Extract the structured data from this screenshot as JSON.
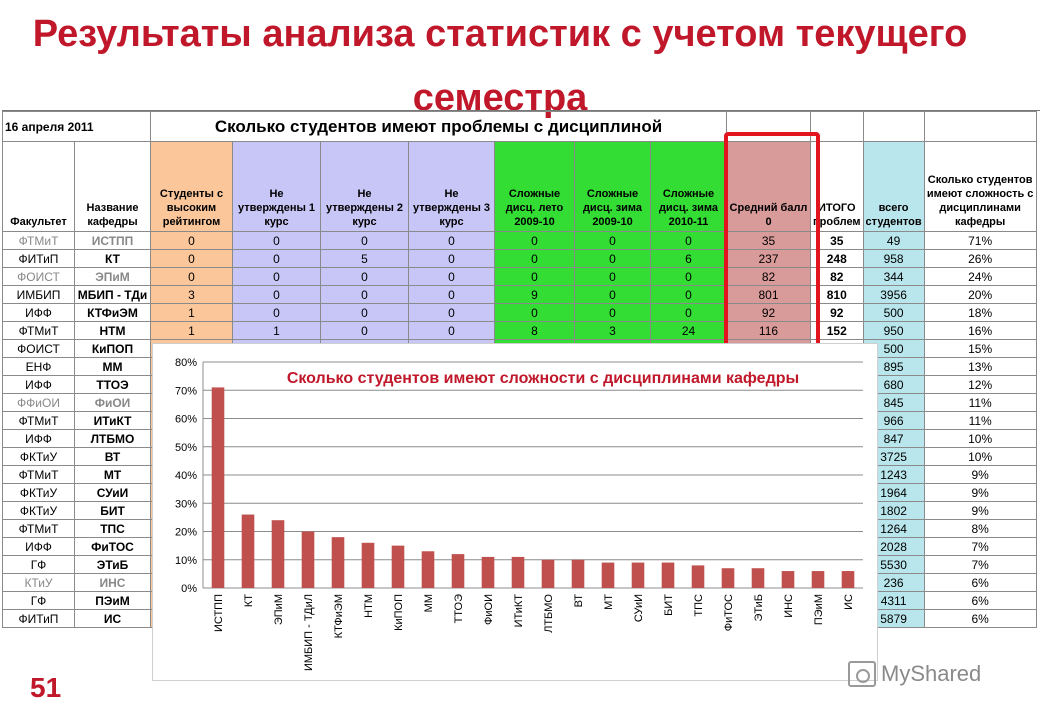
{
  "slide": {
    "title": "Результаты анализа статистик с учетом текущего семестра",
    "number": "51",
    "logo_text": "MyShared"
  },
  "sheet": {
    "date": "16 апреля 2011",
    "banner": "Сколько студентов имеют проблемы с дисциплиной",
    "headers": [
      "Факультет",
      "Название кафедры",
      "Студенты с высоким рейтингом",
      "Не утверждены 1 курс",
      "Не утверждены 2 курс",
      "Не утверждены 3 курс",
      "Сложные дисц. лето 2009-10",
      "Сложные дисц. зима 2009-10",
      "Сложные дисц. зима 2010-11",
      "Средний балл 0",
      "ИТОГО проблем",
      "всего студентов",
      "Сколько студентов имеют сложность с дисциплинами кафедры"
    ],
    "rows": [
      {
        "fac": "ФТМиТ",
        "dep": "ИСТПП",
        "v": [
          "0",
          "0",
          "0",
          "0",
          "0",
          "0",
          "0",
          "35",
          "35",
          "49",
          "71%"
        ],
        "gray": true
      },
      {
        "fac": "ФИТиП",
        "dep": "КТ",
        "v": [
          "0",
          "0",
          "5",
          "0",
          "0",
          "0",
          "6",
          "237",
          "248",
          "958",
          "26%"
        ],
        "gray": false
      },
      {
        "fac": "ФОИСТ",
        "dep": "ЭПиМ",
        "v": [
          "0",
          "0",
          "0",
          "0",
          "0",
          "0",
          "0",
          "82",
          "82",
          "344",
          "24%"
        ],
        "gray": true
      },
      {
        "fac": "ИМБИП",
        "dep": "МБИП - ТДи",
        "v": [
          "3",
          "0",
          "0",
          "0",
          "9",
          "0",
          "0",
          "801",
          "810",
          "3956",
          "20%"
        ],
        "gray": false
      },
      {
        "fac": "ИФФ",
        "dep": "КТФиЭМ",
        "v": [
          "1",
          "0",
          "0",
          "0",
          "0",
          "0",
          "0",
          "92",
          "92",
          "500",
          "18%"
        ],
        "gray": false
      },
      {
        "fac": "ФТМиТ",
        "dep": "НТМ",
        "v": [
          "1",
          "1",
          "0",
          "0",
          "8",
          "3",
          "24",
          "116",
          "152",
          "950",
          "16%"
        ],
        "gray": false
      },
      {
        "fac": "ФОИСТ",
        "dep": "КиПОП",
        "v": [
          "",
          "",
          "",
          "",
          "",
          "",
          "",
          "",
          "",
          "500",
          "15%"
        ],
        "gray": false
      },
      {
        "fac": "ЕНФ",
        "dep": "ММ",
        "v": [
          "",
          "",
          "",
          "",
          "",
          "",
          "",
          "",
          "",
          "895",
          "13%"
        ],
        "gray": false
      },
      {
        "fac": "ИФФ",
        "dep": "ТТОЭ",
        "v": [
          "",
          "",
          "",
          "",
          "",
          "",
          "",
          "",
          "",
          "680",
          "12%"
        ],
        "gray": false
      },
      {
        "fac": "ФФиОИ",
        "dep": "ФиОИ",
        "v": [
          "",
          "",
          "",
          "",
          "",
          "",
          "",
          "",
          "",
          "845",
          "11%"
        ],
        "gray": true
      },
      {
        "fac": "ФТМиТ",
        "dep": "ИТиКТ",
        "v": [
          "",
          "",
          "",
          "",
          "",
          "",
          "",
          "",
          "",
          "966",
          "11%"
        ],
        "gray": false
      },
      {
        "fac": "ИФФ",
        "dep": "ЛТБМО",
        "v": [
          "",
          "",
          "",
          "",
          "",
          "",
          "",
          "",
          "",
          "847",
          "10%"
        ],
        "gray": false
      },
      {
        "fac": "ФКТиУ",
        "dep": "ВТ",
        "v": [
          "",
          "",
          "",
          "",
          "",
          "",
          "",
          "",
          "",
          "3725",
          "10%"
        ],
        "gray": false
      },
      {
        "fac": "ФТМиТ",
        "dep": "МТ",
        "v": [
          "",
          "",
          "",
          "",
          "",
          "",
          "",
          "",
          "",
          "1243",
          "9%"
        ],
        "gray": false
      },
      {
        "fac": "ФКТиУ",
        "dep": "СУиИ",
        "v": [
          "",
          "",
          "",
          "",
          "",
          "",
          "",
          "",
          "",
          "1964",
          "9%"
        ],
        "gray": false
      },
      {
        "fac": "ФКТиУ",
        "dep": "БИТ",
        "v": [
          "",
          "",
          "",
          "",
          "",
          "",
          "",
          "",
          "",
          "1802",
          "9%"
        ],
        "gray": false
      },
      {
        "fac": "ФТМиТ",
        "dep": "ТПС",
        "v": [
          "",
          "",
          "",
          "",
          "",
          "",
          "",
          "",
          "",
          "1264",
          "8%"
        ],
        "gray": false
      },
      {
        "fac": "ИФФ",
        "dep": "ФиТОС",
        "v": [
          "",
          "",
          "",
          "",
          "",
          "",
          "",
          "",
          "",
          "2028",
          "7%"
        ],
        "gray": false
      },
      {
        "fac": "ГФ",
        "dep": "ЭТиБ",
        "v": [
          "",
          "",
          "",
          "",
          "",
          "",
          "",
          "",
          "",
          "5530",
          "7%"
        ],
        "gray": false
      },
      {
        "fac": "КТиУ",
        "dep": "ИНС",
        "v": [
          "",
          "",
          "",
          "",
          "",
          "",
          "",
          "",
          "",
          "236",
          "6%"
        ],
        "gray": true
      },
      {
        "fac": "ГФ",
        "dep": "ПЭиМ",
        "v": [
          "",
          "",
          "",
          "",
          "",
          "",
          "",
          "",
          "",
          "4311",
          "6%"
        ],
        "gray": false
      },
      {
        "fac": "ФИТиП",
        "dep": "ИС",
        "v": [
          "",
          "",
          "",
          "",
          "",
          "",
          "",
          "",
          "",
          "5879",
          "6%"
        ],
        "gray": false
      }
    ]
  },
  "chart_data": {
    "type": "bar",
    "title": "Сколько студентов имеют сложности с дисциплинами кафедры",
    "categories": [
      "ИСТПП",
      "КТ",
      "ЭПиМ",
      "ИМБИП - ТДиЛ",
      "КТФиЭМ",
      "НТМ",
      "КиПОП",
      "ММ",
      "ТТОЭ",
      "ФиОИ",
      "ИТиКТ",
      "ЛТБМО",
      "ВТ",
      "МТ",
      "СУиИ",
      "БИТ",
      "ТПС",
      "ФиТОС",
      "ЭТиБ",
      "ИНС",
      "ПЭиМ",
      "ИС"
    ],
    "values": [
      71,
      26,
      24,
      20,
      18,
      16,
      15,
      13,
      12,
      11,
      11,
      10,
      10,
      9,
      9,
      9,
      8,
      7,
      7,
      6,
      6,
      6
    ],
    "yticks": [
      "0%",
      "10%",
      "20%",
      "30%",
      "40%",
      "50%",
      "60%",
      "70%",
      "80%"
    ],
    "ylim": [
      0,
      80
    ],
    "grid": true,
    "bar_color": "#c0504d"
  }
}
